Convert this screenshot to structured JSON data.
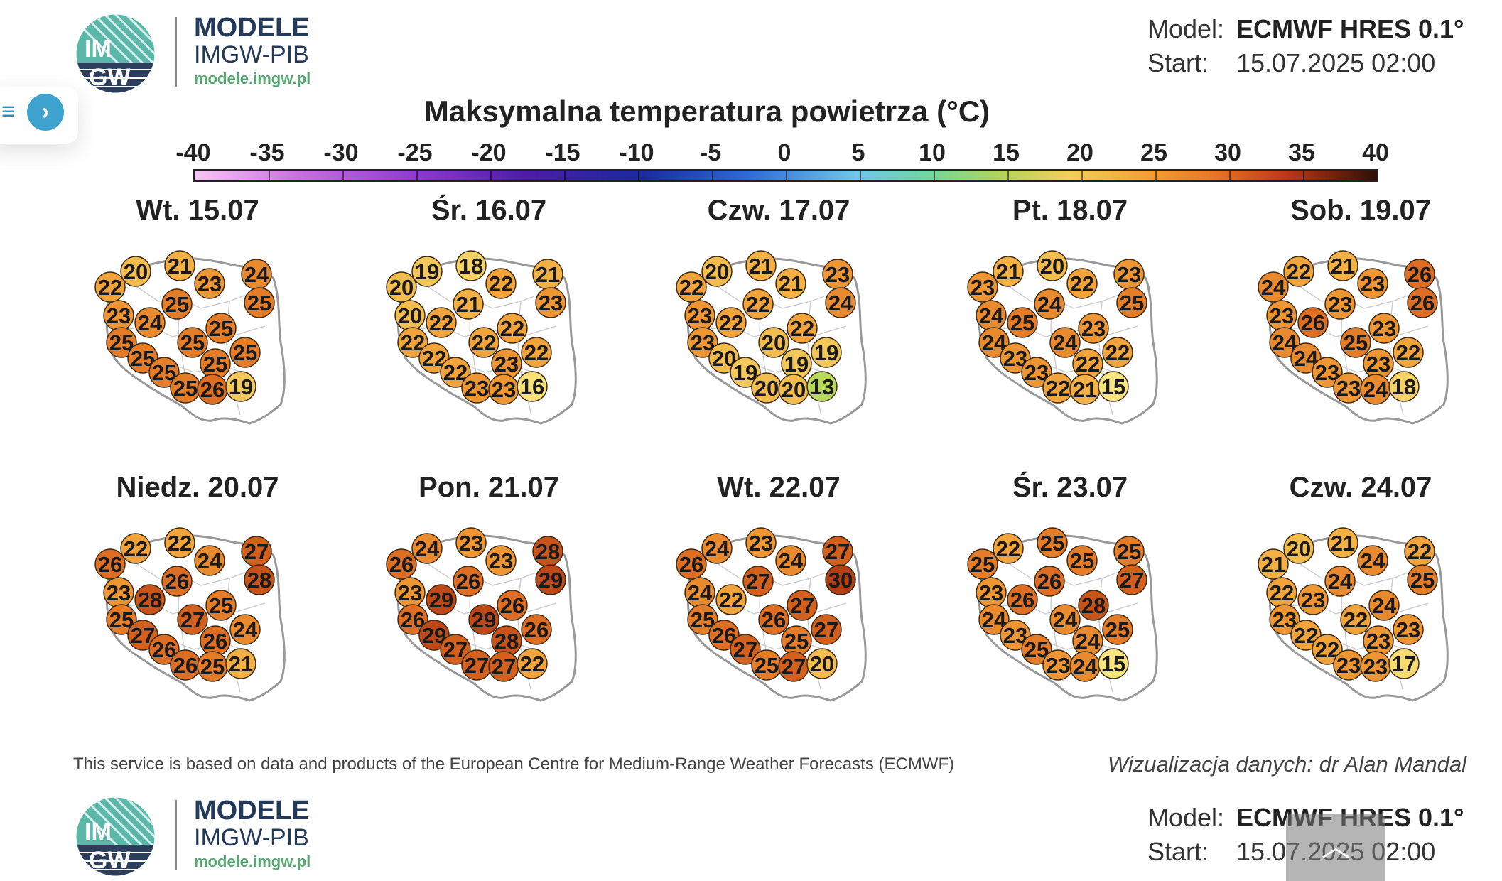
{
  "header": {
    "logo": {
      "mark_top": "IM",
      "mark_bottom": "GW",
      "line1": "MODELE",
      "line2": "IMGW-PIB",
      "line3": "modele.imgw.pl"
    },
    "model_label": "Model:",
    "model_value": "ECMWF HRES 0.1°",
    "start_label": "Start:",
    "start_value": "15.07.2025 02:00"
  },
  "sidebar": {
    "menu_icon": "hamburger-menu-icon",
    "next_icon": "chevron-right-icon",
    "menu_glyph": "≡",
    "next_glyph": "›"
  },
  "title": "Maksymalna temperatura powietrza (°C)",
  "scale": {
    "ticks": [
      "-40",
      "-35",
      "-30",
      "-25",
      "-20",
      "-15",
      "-10",
      "-5",
      "0",
      "5",
      "10",
      "15",
      "20",
      "25",
      "30",
      "35",
      "40"
    ],
    "colors": [
      "#f4c7f2",
      "#c86ee0",
      "#8a3ad0",
      "#4b1ca8",
      "#1c2aa0",
      "#2d6dd8",
      "#70c8ea",
      "#6fd7a2",
      "#b3d45a",
      "#f0d05a",
      "#f5a436",
      "#e97825",
      "#c23a18",
      "#6a1d0c",
      "#2a1008"
    ]
  },
  "days": [
    {
      "title": "Wt. 15.07",
      "values": [
        22,
        20,
        21,
        23,
        24,
        25,
        23,
        25,
        24,
        25,
        25,
        25,
        25,
        25,
        25,
        25,
        25,
        26,
        19
      ]
    },
    {
      "title": "Śr. 16.07",
      "values": [
        20,
        19,
        18,
        22,
        21,
        23,
        20,
        21,
        22,
        22,
        22,
        22,
        22,
        23,
        22,
        22,
        23,
        23,
        16
      ]
    },
    {
      "title": "Czw. 17.07",
      "values": [
        22,
        20,
        21,
        21,
        23,
        24,
        23,
        22,
        22,
        22,
        23,
        20,
        20,
        19,
        19,
        19,
        20,
        20,
        13
      ]
    },
    {
      "title": "Pt. 18.07",
      "values": [
        23,
        21,
        20,
        22,
        23,
        25,
        24,
        24,
        25,
        23,
        24,
        24,
        23,
        22,
        22,
        23,
        22,
        21,
        15
      ]
    },
    {
      "title": "Sob. 19.07",
      "values": [
        24,
        22,
        21,
        23,
        26,
        26,
        23,
        23,
        26,
        23,
        24,
        25,
        24,
        23,
        22,
        23,
        23,
        24,
        18
      ]
    },
    {
      "title": "Niedz. 20.07",
      "values": [
        26,
        22,
        22,
        24,
        27,
        28,
        23,
        26,
        28,
        25,
        25,
        27,
        27,
        26,
        24,
        26,
        26,
        25,
        21
      ]
    },
    {
      "title": "Pon. 21.07",
      "values": [
        26,
        24,
        23,
        23,
        28,
        29,
        23,
        26,
        29,
        26,
        26,
        29,
        29,
        28,
        26,
        27,
        27,
        27,
        22
      ]
    },
    {
      "title": "Wt. 22.07",
      "values": [
        26,
        24,
        23,
        24,
        27,
        30,
        24,
        27,
        22,
        27,
        25,
        26,
        26,
        25,
        27,
        27,
        25,
        27,
        20
      ]
    },
    {
      "title": "Śr. 23.07",
      "values": [
        25,
        22,
        25,
        25,
        25,
        27,
        23,
        26,
        26,
        28,
        24,
        24,
        23,
        24,
        25,
        25,
        23,
        24,
        15
      ]
    },
    {
      "title": "Czw. 24.07",
      "values": [
        21,
        20,
        21,
        24,
        22,
        25,
        22,
        24,
        23,
        24,
        23,
        22,
        22,
        23,
        23,
        22,
        23,
        23,
        17
      ]
    }
  ],
  "footer": {
    "source_note": "This service is based on data and products of the European Centre for Medium-Range Weather Forecasts (ECMWF)",
    "credit": "Wizualizacja danych: dr Alan Mandal"
  },
  "scroll_button": {
    "icon": "scroll-up-icon",
    "glyph": "︿"
  }
}
